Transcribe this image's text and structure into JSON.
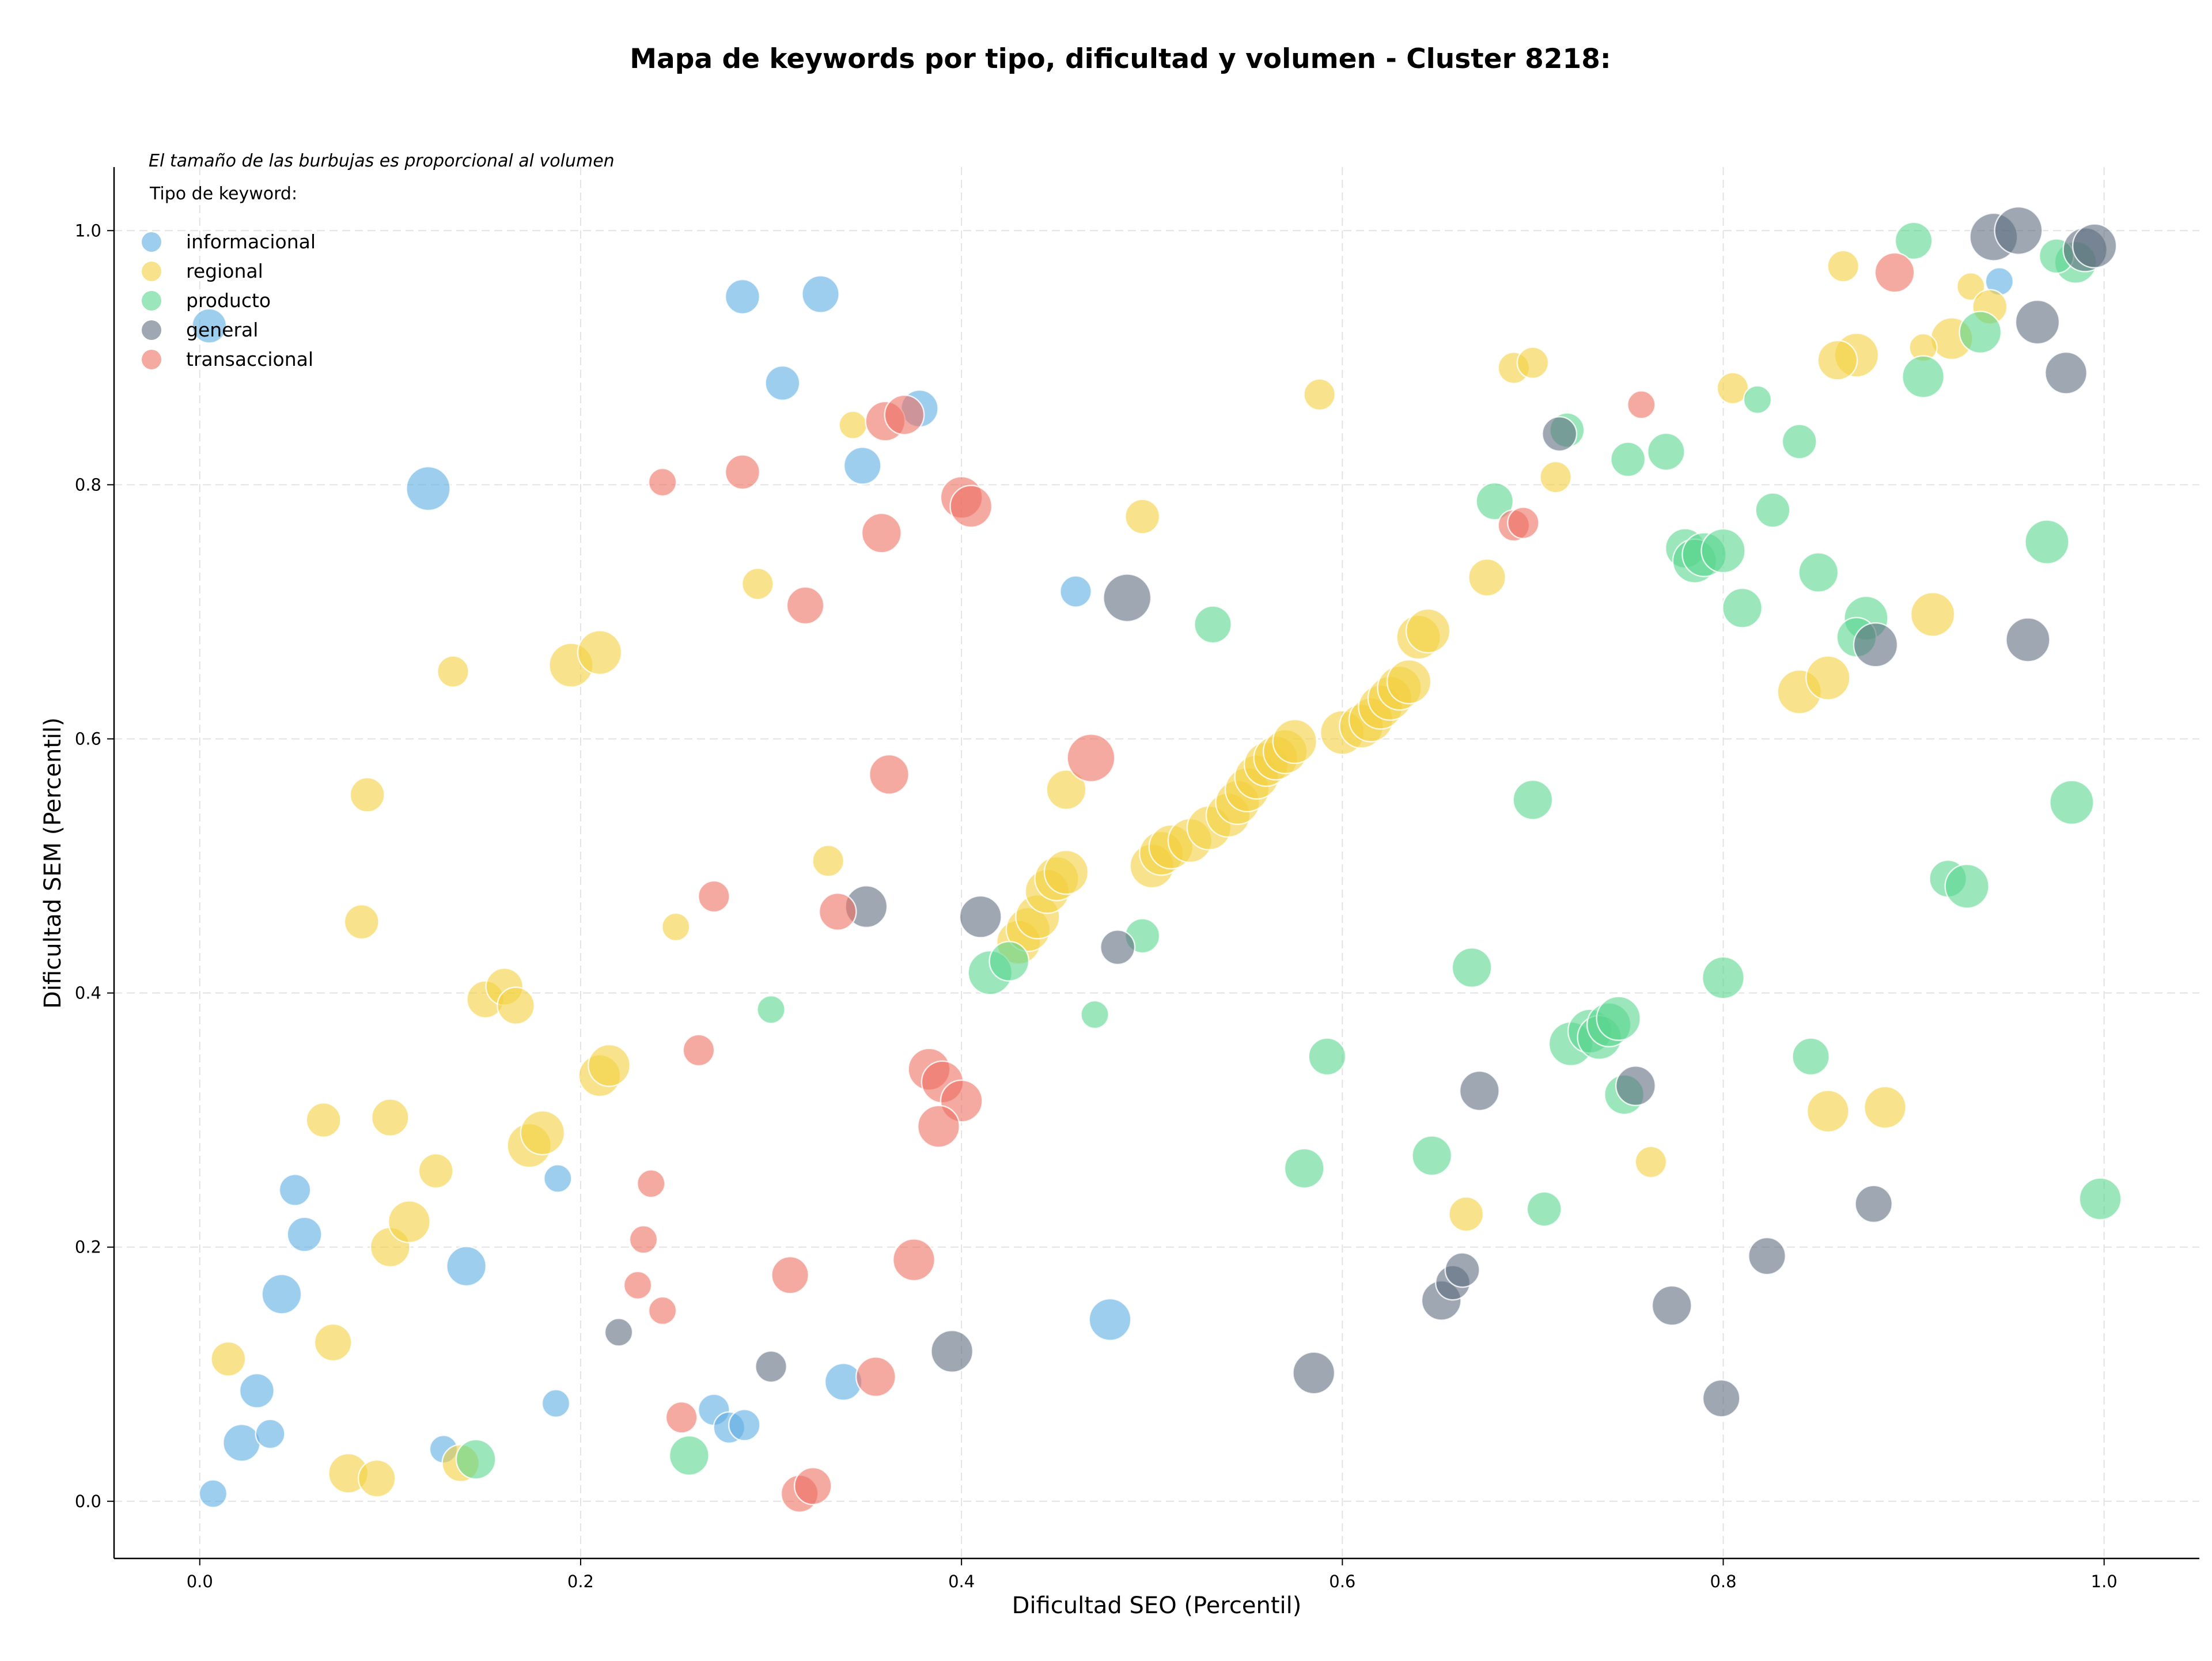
{
  "chart_data": {
    "type": "scatter",
    "title": "Mapa de keywords por tipo, dificultad y volumen - Cluster 8218:",
    "xlabel": "Dificultad SEO (Percentil)",
    "ylabel": "Dificultad SEM (Percentil)",
    "xlim": [
      -0.045,
      1.05
    ],
    "ylim": [
      -0.045,
      1.05
    ],
    "xticks": [
      "0.0",
      "0.2",
      "0.4",
      "0.6",
      "0.8",
      "1.0"
    ],
    "yticks": [
      "0.0",
      "0.2",
      "0.4",
      "0.6",
      "0.8",
      "1.0"
    ],
    "grid": true,
    "note": "El tamaño de las burbujas es proporcional al volumen",
    "legend_title": "Tipo de keyword:",
    "legend_position": "top-left",
    "series": [
      {
        "name": "informacional",
        "color": "#5DADE2",
        "points": [
          [
            0.005,
            0.925,
            2
          ],
          [
            0.12,
            0.797,
            4
          ],
          [
            0.285,
            0.948,
            2
          ],
          [
            0.326,
            0.95,
            2.5
          ],
          [
            0.306,
            0.88,
            2
          ],
          [
            0.348,
            0.815,
            2.5
          ],
          [
            0.378,
            0.86,
            2.5
          ],
          [
            0.46,
            0.716,
            1.5
          ],
          [
            0.05,
            0.245,
            1.5
          ],
          [
            0.055,
            0.21,
            2
          ],
          [
            0.043,
            0.163,
            3
          ],
          [
            0.14,
            0.185,
            3
          ],
          [
            0.03,
            0.087,
            2
          ],
          [
            0.022,
            0.046,
            2.5
          ],
          [
            0.037,
            0.053,
            1.2
          ],
          [
            0.007,
            0.006,
            1
          ],
          [
            0.188,
            0.254,
            1
          ],
          [
            0.187,
            0.077,
            1
          ],
          [
            0.128,
            0.041,
            1
          ],
          [
            0.27,
            0.072,
            1.5
          ],
          [
            0.278,
            0.058,
            1.5
          ],
          [
            0.286,
            0.06,
            1.5
          ],
          [
            0.338,
            0.094,
            2.5
          ],
          [
            0.478,
            0.143,
            3.5
          ],
          [
            0.945,
            0.96,
            1
          ]
        ]
      },
      {
        "name": "regional",
        "color": "#F4D03F",
        "points": [
          [
            0.015,
            0.112,
            2
          ],
          [
            0.07,
            0.125,
            2.5
          ],
          [
            0.078,
            0.022,
            3
          ],
          [
            0.093,
            0.018,
            2.5
          ],
          [
            0.137,
            0.03,
            2.5
          ],
          [
            0.065,
            0.3,
            2
          ],
          [
            0.1,
            0.302,
            2.5
          ],
          [
            0.124,
            0.26,
            2
          ],
          [
            0.1,
            0.2,
            3
          ],
          [
            0.11,
            0.22,
            3.5
          ],
          [
            0.173,
            0.28,
            4
          ],
          [
            0.18,
            0.29,
            4
          ],
          [
            0.21,
            0.335,
            3.5
          ],
          [
            0.215,
            0.343,
            3.5
          ],
          [
            0.15,
            0.395,
            2.5
          ],
          [
            0.16,
            0.405,
            2.5
          ],
          [
            0.166,
            0.39,
            2.5
          ],
          [
            0.085,
            0.456,
            2
          ],
          [
            0.088,
            0.556,
            2
          ],
          [
            0.133,
            0.653,
            1.5
          ],
          [
            0.195,
            0.658,
            4
          ],
          [
            0.21,
            0.668,
            4
          ],
          [
            0.293,
            0.722,
            1.5
          ],
          [
            0.343,
            0.847,
            1
          ],
          [
            0.33,
            0.504,
            1.5
          ],
          [
            0.25,
            0.452,
            1
          ],
          [
            0.495,
            0.775,
            2
          ],
          [
            0.455,
            0.56,
            3
          ],
          [
            0.588,
            0.871,
            1.5
          ],
          [
            0.676,
            0.727,
            2.5
          ],
          [
            0.69,
            0.892,
            1.5
          ],
          [
            0.7,
            0.896,
            1.5
          ],
          [
            0.712,
            0.806,
            1.5
          ],
          [
            0.805,
            0.876,
            1.5
          ],
          [
            0.863,
            0.972,
            1.5
          ],
          [
            0.87,
            0.902,
            4
          ],
          [
            0.86,
            0.898,
            3
          ],
          [
            0.91,
            0.698,
            4
          ],
          [
            0.84,
            0.637,
            4
          ],
          [
            0.855,
            0.648,
            4
          ],
          [
            0.92,
            0.915,
            3.5
          ],
          [
            0.93,
            0.956,
            1
          ],
          [
            0.905,
            0.908,
            1
          ],
          [
            0.94,
            0.94,
            2
          ],
          [
            0.855,
            0.307,
            3.5
          ],
          [
            0.885,
            0.31,
            3.5
          ],
          [
            0.762,
            0.267,
            1.5
          ],
          [
            0.665,
            0.226,
            2
          ],
          [
            0.43,
            0.44,
            4
          ],
          [
            0.435,
            0.45,
            4
          ],
          [
            0.44,
            0.46,
            4
          ],
          [
            0.445,
            0.48,
            4
          ],
          [
            0.45,
            0.49,
            4
          ],
          [
            0.455,
            0.495,
            4
          ],
          [
            0.5,
            0.5,
            4
          ],
          [
            0.505,
            0.51,
            4
          ],
          [
            0.51,
            0.515,
            4
          ],
          [
            0.52,
            0.52,
            4
          ],
          [
            0.53,
            0.53,
            4
          ],
          [
            0.54,
            0.54,
            4
          ],
          [
            0.545,
            0.55,
            4
          ],
          [
            0.55,
            0.56,
            4
          ],
          [
            0.555,
            0.57,
            4
          ],
          [
            0.56,
            0.58,
            4
          ],
          [
            0.565,
            0.585,
            4
          ],
          [
            0.57,
            0.59,
            4
          ],
          [
            0.575,
            0.598,
            4
          ],
          [
            0.6,
            0.605,
            4
          ],
          [
            0.61,
            0.61,
            4
          ],
          [
            0.615,
            0.615,
            4
          ],
          [
            0.62,
            0.625,
            4
          ],
          [
            0.625,
            0.632,
            4
          ],
          [
            0.63,
            0.64,
            4
          ],
          [
            0.635,
            0.645,
            4
          ],
          [
            0.64,
            0.68,
            4
          ],
          [
            0.645,
            0.685,
            4
          ]
        ]
      },
      {
        "name": "producto",
        "color": "#58D68D",
        "points": [
          [
            0.145,
            0.033,
            3
          ],
          [
            0.257,
            0.036,
            3
          ],
          [
            0.3,
            0.387,
            1
          ],
          [
            0.47,
            0.383,
            1
          ],
          [
            0.495,
            0.445,
            2
          ],
          [
            0.415,
            0.416,
            4
          ],
          [
            0.425,
            0.425,
            3
          ],
          [
            0.532,
            0.69,
            2.5
          ],
          [
            0.58,
            0.262,
            3
          ],
          [
            0.592,
            0.35,
            2.5
          ],
          [
            0.647,
            0.272,
            3
          ],
          [
            0.668,
            0.42,
            3
          ],
          [
            0.68,
            0.787,
            2.5
          ],
          [
            0.7,
            0.552,
            3
          ],
          [
            0.706,
            0.23,
            2
          ],
          [
            0.718,
            0.843,
            2
          ],
          [
            0.75,
            0.82,
            2
          ],
          [
            0.77,
            0.826,
            2.5
          ],
          [
            0.78,
            0.75,
            3
          ],
          [
            0.785,
            0.74,
            4
          ],
          [
            0.79,
            0.745,
            4
          ],
          [
            0.8,
            0.748,
            4
          ],
          [
            0.81,
            0.703,
            3
          ],
          [
            0.818,
            0.867,
            1
          ],
          [
            0.826,
            0.78,
            2
          ],
          [
            0.84,
            0.834,
            2
          ],
          [
            0.85,
            0.731,
            3
          ],
          [
            0.846,
            0.35,
            2.5
          ],
          [
            0.8,
            0.412,
            3.5
          ],
          [
            0.875,
            0.695,
            4
          ],
          [
            0.87,
            0.68,
            3
          ],
          [
            0.905,
            0.885,
            3.5
          ],
          [
            0.935,
            0.92,
            3.5
          ],
          [
            0.9,
            0.992,
            2.5
          ],
          [
            0.97,
            0.755,
            4
          ],
          [
            0.983,
            0.55,
            4
          ],
          [
            0.918,
            0.49,
            2.5
          ],
          [
            0.928,
            0.484,
            4
          ],
          [
            0.985,
            0.975,
            3.5
          ],
          [
            0.998,
            0.238,
            3.5
          ],
          [
            0.72,
            0.36,
            4
          ],
          [
            0.73,
            0.37,
            4
          ],
          [
            0.735,
            0.365,
            4
          ],
          [
            0.74,
            0.375,
            4
          ],
          [
            0.745,
            0.38,
            4
          ],
          [
            0.748,
            0.32,
            3
          ],
          [
            0.975,
            0.98,
            2
          ]
        ]
      },
      {
        "name": "general",
        "color": "#5D6D7E",
        "points": [
          [
            0.22,
            0.133,
            1
          ],
          [
            0.3,
            0.106,
            1.5
          ],
          [
            0.35,
            0.468,
            3.5
          ],
          [
            0.395,
            0.118,
            3.5
          ],
          [
            0.41,
            0.46,
            3.5
          ],
          [
            0.482,
            0.436,
            2
          ],
          [
            0.487,
            0.711,
            5
          ],
          [
            0.585,
            0.101,
            3.5
          ],
          [
            0.652,
            0.158,
            3
          ],
          [
            0.658,
            0.172,
            2
          ],
          [
            0.663,
            0.182,
            2
          ],
          [
            0.672,
            0.323,
            3
          ],
          [
            0.714,
            0.84,
            2
          ],
          [
            0.754,
            0.327,
            3
          ],
          [
            0.773,
            0.154,
            3
          ],
          [
            0.799,
            0.081,
            2.5
          ],
          [
            0.823,
            0.193,
            2.5
          ],
          [
            0.879,
            0.234,
            2.5
          ],
          [
            0.88,
            0.674,
            4
          ],
          [
            0.942,
            0.995,
            5
          ],
          [
            0.955,
            1.0,
            5
          ],
          [
            0.96,
            0.678,
            4
          ],
          [
            0.965,
            0.928,
            4
          ],
          [
            0.98,
            0.888,
            3.5
          ],
          [
            0.99,
            0.985,
            4
          ],
          [
            0.995,
            0.988,
            4
          ]
        ]
      },
      {
        "name": "transaccional",
        "color": "#EC7063",
        "points": [
          [
            0.243,
            0.802,
            1
          ],
          [
            0.285,
            0.81,
            2
          ],
          [
            0.318,
            0.705,
            2.5
          ],
          [
            0.358,
            0.762,
            3
          ],
          [
            0.362,
            0.572,
            3
          ],
          [
            0.36,
            0.85,
            3
          ],
          [
            0.37,
            0.855,
            3
          ],
          [
            0.4,
            0.79,
            3.5
          ],
          [
            0.405,
            0.783,
            3.5
          ],
          [
            0.468,
            0.585,
            5
          ],
          [
            0.27,
            0.476,
            1.5
          ],
          [
            0.262,
            0.355,
            1.5
          ],
          [
            0.335,
            0.464,
            2.5
          ],
          [
            0.383,
            0.34,
            3.5
          ],
          [
            0.39,
            0.33,
            3.5
          ],
          [
            0.4,
            0.315,
            3.5
          ],
          [
            0.388,
            0.295,
            3.5
          ],
          [
            0.375,
            0.19,
            3.5
          ],
          [
            0.31,
            0.178,
            2.5
          ],
          [
            0.237,
            0.25,
            1
          ],
          [
            0.233,
            0.206,
            1
          ],
          [
            0.23,
            0.17,
            1
          ],
          [
            0.243,
            0.15,
            1
          ],
          [
            0.253,
            0.066,
            1.5
          ],
          [
            0.315,
            0.006,
            2.5
          ],
          [
            0.322,
            0.012,
            2.5
          ],
          [
            0.355,
            0.098,
            3
          ],
          [
            0.69,
            0.768,
            1.5
          ],
          [
            0.695,
            0.77,
            1.5
          ],
          [
            0.757,
            0.863,
            1
          ],
          [
            0.89,
            0.967,
            3
          ]
        ]
      }
    ]
  }
}
